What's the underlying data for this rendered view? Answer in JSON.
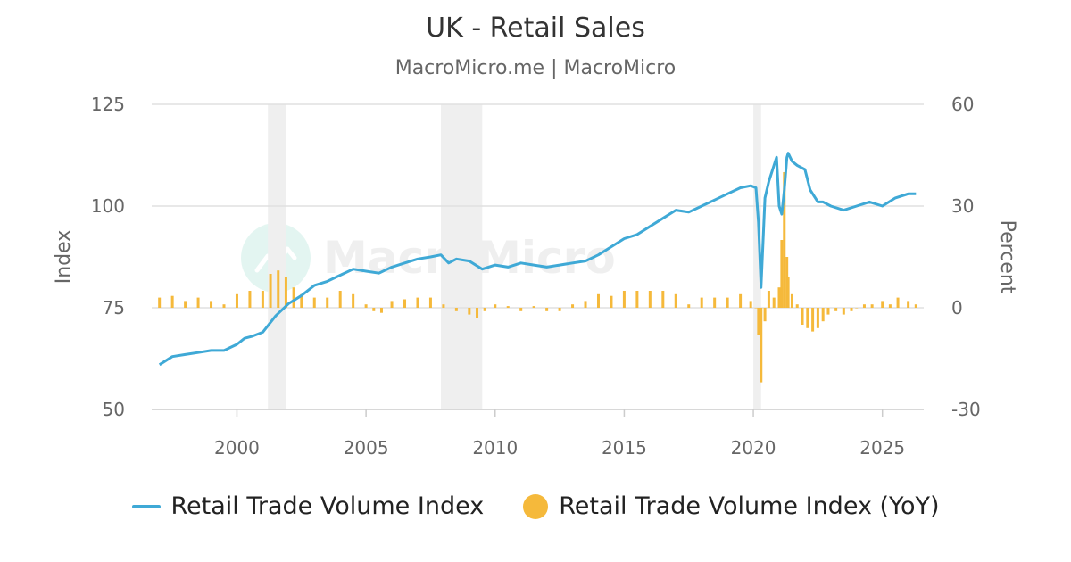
{
  "colors": {
    "line": "#3fa9d6",
    "bars": "#f5b93b",
    "grid": "#e0e0e0",
    "recession": "#efefef",
    "text": "#666666"
  },
  "watermark": {
    "text": "MacroMicro"
  },
  "chart_data": {
    "type": "line",
    "title": "UK - Retail Sales",
    "subtitle": "MacroMicro.me | MacroMicro",
    "ylabel": "Index",
    "y2label": "Percent",
    "ylim": [
      50,
      125
    ],
    "y2lim": [
      -30,
      60
    ],
    "yticks": [
      50,
      75,
      100,
      125
    ],
    "y2ticks": [
      -30,
      0,
      30,
      60
    ],
    "xlim": [
      1996.7,
      2026.6
    ],
    "xticks": [
      2000,
      2005,
      2010,
      2015,
      2020,
      2025
    ],
    "grid": true,
    "legend_position": "bottom",
    "recessions": [
      [
        2001.2,
        2001.9
      ],
      [
        2007.9,
        2009.5
      ],
      [
        2020.0,
        2020.3
      ]
    ],
    "series": [
      {
        "name": "Retail Trade Volume Index",
        "axis": "left",
        "kind": "line",
        "x": [
          1997.0,
          1997.5,
          1998.0,
          1998.5,
          1999.0,
          1999.5,
          2000.0,
          2000.3,
          2000.6,
          2001.0,
          2001.5,
          2002.0,
          2002.5,
          2003.0,
          2003.5,
          2004.0,
          2004.5,
          2005.0,
          2005.5,
          2006.0,
          2006.5,
          2007.0,
          2007.5,
          2007.9,
          2008.2,
          2008.5,
          2009.0,
          2009.5,
          2010.0,
          2010.5,
          2011.0,
          2011.5,
          2012.0,
          2012.5,
          2013.0,
          2013.5,
          2014.0,
          2014.5,
          2015.0,
          2015.5,
          2016.0,
          2016.5,
          2017.0,
          2017.5,
          2018.0,
          2018.5,
          2019.0,
          2019.5,
          2019.9,
          2020.1,
          2020.2,
          2020.3,
          2020.45,
          2020.6,
          2020.9,
          2021.0,
          2021.1,
          2021.2,
          2021.3,
          2021.35,
          2021.5,
          2021.7,
          2022.0,
          2022.2,
          2022.5,
          2022.7,
          2023.0,
          2023.5,
          2024.0,
          2024.5,
          2025.0,
          2025.5,
          2026.0,
          2026.3
        ],
        "values": [
          61,
          63,
          63.5,
          64,
          64.5,
          64.5,
          66,
          67.5,
          68,
          69,
          73,
          76,
          78,
          80.5,
          81.5,
          83,
          84.5,
          84,
          83.5,
          85,
          86,
          87,
          87.5,
          88,
          86,
          87,
          86.5,
          84.5,
          85.5,
          85,
          86,
          85.5,
          85,
          85.5,
          86,
          86.5,
          88,
          90,
          92,
          93,
          95,
          97,
          99,
          98.5,
          100,
          101.5,
          103,
          104.5,
          105,
          104.5,
          96,
          80,
          102,
          106,
          112,
          100,
          98,
          104,
          112,
          113,
          111,
          110,
          109,
          104,
          101,
          101,
          100,
          99,
          100,
          101,
          100,
          102,
          103,
          103
        ]
      },
      {
        "name": "Retail Trade Volume Index (YoY)",
        "axis": "right",
        "kind": "bar",
        "x": [
          1997.0,
          1997.5,
          1998.0,
          1998.5,
          1999.0,
          1999.5,
          2000.0,
          2000.5,
          2001.0,
          2001.3,
          2001.6,
          2001.9,
          2002.2,
          2002.5,
          2003.0,
          2003.5,
          2004.0,
          2004.5,
          2005.0,
          2005.3,
          2005.6,
          2006.0,
          2006.5,
          2007.0,
          2007.5,
          2008.0,
          2008.5,
          2009.0,
          2009.3,
          2009.6,
          2010.0,
          2010.5,
          2011.0,
          2011.5,
          2012.0,
          2012.5,
          2013.0,
          2013.5,
          2014.0,
          2014.5,
          2015.0,
          2015.5,
          2016.0,
          2016.5,
          2017.0,
          2017.5,
          2018.0,
          2018.5,
          2019.0,
          2019.5,
          2019.9,
          2020.1,
          2020.2,
          2020.3,
          2020.45,
          2020.6,
          2020.8,
          2021.0,
          2021.1,
          2021.2,
          2021.3,
          2021.35,
          2021.5,
          2021.7,
          2021.9,
          2022.1,
          2022.3,
          2022.5,
          2022.7,
          2022.9,
          2023.2,
          2023.5,
          2023.8,
          2024.0,
          2024.3,
          2024.6,
          2025.0,
          2025.3,
          2025.6,
          2026.0,
          2026.3
        ],
        "values": [
          3,
          3.5,
          2,
          3,
          2,
          1,
          4,
          5,
          5,
          10,
          11,
          9,
          6,
          4,
          3,
          3,
          5,
          4,
          1,
          -1,
          -1.5,
          2,
          2.5,
          3,
          3,
          1,
          -1,
          -2,
          -3,
          -1,
          1,
          0.5,
          -1,
          0.5,
          -1,
          -1,
          1,
          2,
          4,
          3.5,
          5,
          5,
          5,
          5,
          4,
          1,
          3,
          3,
          3,
          4,
          2,
          0,
          -8,
          -22,
          -4,
          5,
          3,
          6,
          20,
          40,
          15,
          9,
          4,
          1,
          -5,
          -6,
          -7,
          -6,
          -4,
          -2,
          -1,
          -2,
          -1,
          0,
          1,
          1,
          2,
          1,
          3,
          2,
          1
        ]
      }
    ]
  }
}
